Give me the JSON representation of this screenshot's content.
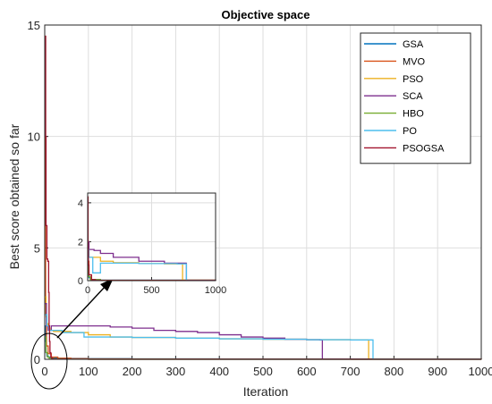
{
  "chart_data": {
    "type": "line",
    "title": "Objective space",
    "xlabel": "Iteration",
    "ylabel": "Best score obtained so far",
    "xlim": [
      0,
      1000
    ],
    "ylim": [
      0,
      15
    ],
    "xticks": [
      "0",
      "100",
      "200",
      "300",
      "400",
      "500",
      "600",
      "700",
      "800",
      "900",
      "1000"
    ],
    "yticks": [
      "0",
      "5",
      "10",
      "15"
    ],
    "grid": true,
    "legend_position": "top-right",
    "series": [
      {
        "name": "GSA",
        "color": "#0072BD",
        "x": [
          1,
          2,
          3,
          5,
          8,
          12,
          20,
          30,
          60,
          100,
          200,
          400,
          600,
          800,
          960,
          1000
        ],
        "y": [
          1.5,
          0.8,
          0.3,
          0.15,
          0.1,
          0.08,
          0.06,
          0.05,
          0.04,
          0.03,
          0.02,
          0.015,
          0.012,
          0.01,
          0.01,
          0.01
        ]
      },
      {
        "name": "MVO",
        "color": "#D95319",
        "x": [
          1,
          2,
          4,
          8,
          15,
          30,
          60,
          100,
          200,
          400,
          700,
          1000
        ],
        "y": [
          14.5,
          2.0,
          0.6,
          0.25,
          0.1,
          0.05,
          0.03,
          0.02,
          0.01,
          0.005,
          0.003,
          0.002
        ]
      },
      {
        "name": "PSO",
        "color": "#EDB120",
        "x": [
          1,
          3,
          5,
          8,
          12,
          20,
          60,
          100,
          150,
          200,
          300,
          400,
          500,
          600,
          700,
          740,
          742,
          1000
        ],
        "y": [
          2.8,
          1.9,
          1.6,
          1.4,
          1.3,
          1.25,
          1.2,
          1.1,
          1.0,
          0.98,
          0.95,
          0.92,
          0.9,
          0.88,
          0.87,
          0.87,
          0.02,
          0.02
        ]
      },
      {
        "name": "SCA",
        "color": "#7E2F8E",
        "x": [
          1,
          4,
          8,
          15,
          60,
          100,
          150,
          200,
          250,
          300,
          350,
          400,
          450,
          500,
          550,
          600,
          630,
          636,
          700,
          1000
        ],
        "y": [
          2.5,
          1.5,
          1.3,
          1.5,
          1.5,
          1.5,
          1.45,
          1.4,
          1.3,
          1.25,
          1.2,
          1.1,
          1.0,
          0.95,
          0.9,
          0.88,
          0.87,
          0.01,
          0.01,
          0.01
        ]
      },
      {
        "name": "HBO",
        "color": "#77AC30",
        "x": [
          1,
          3,
          6,
          10,
          20,
          40,
          100,
          300,
          1000
        ],
        "y": [
          1.0,
          0.3,
          0.1,
          0.05,
          0.02,
          0.005,
          0.002,
          0.001,
          0.001
        ]
      },
      {
        "name": "PO",
        "color": "#4DBEEE",
        "x": [
          1,
          5,
          10,
          20,
          40,
          60,
          80,
          90,
          100,
          200,
          300,
          400,
          500,
          600,
          700,
          750,
          752,
          1000
        ],
        "y": [
          2.0,
          1.5,
          1.3,
          1.3,
          1.2,
          1.2,
          1.2,
          1.0,
          1.0,
          0.98,
          0.95,
          0.92,
          0.9,
          0.88,
          0.87,
          0.87,
          0.01,
          0.01
        ]
      },
      {
        "name": "PSOGSA",
        "color": "#A2142F",
        "x": [
          1,
          2,
          3,
          5,
          7,
          9,
          10,
          11,
          12,
          14,
          16,
          20,
          50,
          100,
          1000
        ],
        "y": [
          14.5,
          10.0,
          6.0,
          4.5,
          4.4,
          3.0,
          1.5,
          0.8,
          0.3,
          0.1,
          0.03,
          0.01,
          0.005,
          0.003,
          0.002
        ]
      }
    ],
    "inset": {
      "xlim": [
        0,
        1000
      ],
      "ylim": [
        0,
        4.5
      ],
      "xticks": [
        "0",
        "500",
        "1000"
      ],
      "yticks": [
        "0",
        "2",
        "4"
      ],
      "series": [
        {
          "name": "GSA",
          "x": [
            1,
            3,
            10,
            30,
            100,
            1000
          ],
          "y": [
            1.2,
            0.4,
            0.15,
            0.06,
            0.03,
            0.01
          ]
        },
        {
          "name": "MVO",
          "x": [
            1,
            3,
            10,
            30,
            100,
            1000
          ],
          "y": [
            4.3,
            1.0,
            0.3,
            0.05,
            0.02,
            0.01
          ]
        },
        {
          "name": "PSO",
          "x": [
            1,
            10,
            50,
            100,
            200,
            400,
            600,
            740,
            742,
            1000
          ],
          "y": [
            2.0,
            1.2,
            1.2,
            1.0,
            0.92,
            0.88,
            0.86,
            0.85,
            0.03,
            0.03
          ]
        },
        {
          "name": "SCA",
          "x": [
            1,
            10,
            50,
            100,
            200,
            400,
            600,
            770,
            772,
            1000
          ],
          "y": [
            2.0,
            1.6,
            1.55,
            1.4,
            1.2,
            1.0,
            0.9,
            0.88,
            0.02,
            0.02
          ]
        },
        {
          "name": "HBO",
          "x": [
            1,
            5,
            20,
            100,
            1000
          ],
          "y": [
            0.8,
            0.2,
            0.05,
            0.01,
            0.01
          ]
        },
        {
          "name": "PO",
          "x": [
            1,
            10,
            40,
            90,
            100,
            400,
            700,
            770,
            772,
            1000
          ],
          "y": [
            1.6,
            1.2,
            0.4,
            0.4,
            0.9,
            0.88,
            0.86,
            0.85,
            0.01,
            0.01
          ]
        },
        {
          "name": "PSOGSA",
          "x": [
            1,
            3,
            6,
            10,
            30,
            60,
            1000
          ],
          "y": [
            4.3,
            1.6,
            0.8,
            0.3,
            0.05,
            0.01,
            0.005
          ]
        }
      ]
    }
  }
}
